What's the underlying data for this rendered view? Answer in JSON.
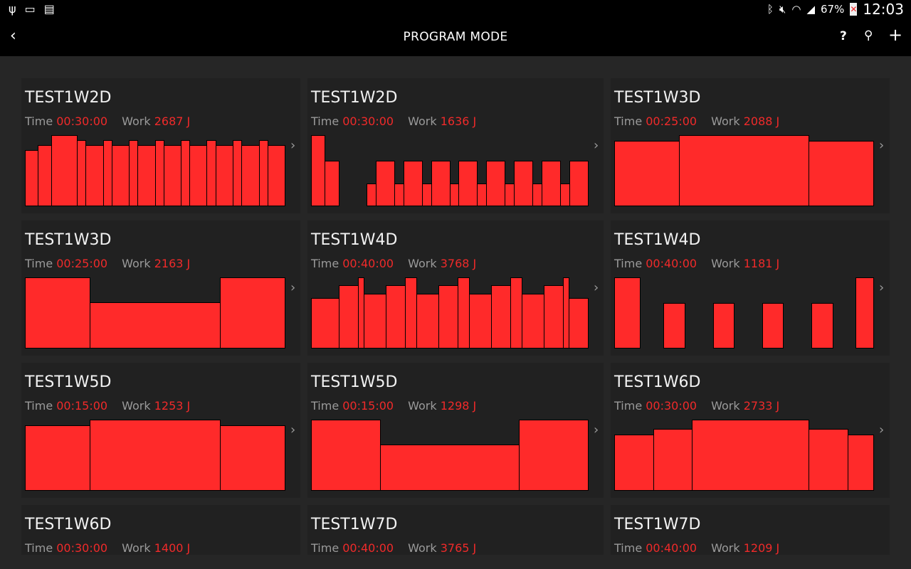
{
  "status_bar": {
    "left_icons": [
      "usb-icon",
      "cast-icon",
      "sim-card-icon"
    ],
    "right_icons": [
      "bluetooth-icon",
      "mute-icon",
      "wifi-icon",
      "signal-icon"
    ],
    "battery": "67%",
    "time": "12:03"
  },
  "app_bar": {
    "title": "PROGRAM MODE",
    "back_icon": "chevron-left-icon",
    "help_label": "?",
    "actions": [
      "help-icon",
      "search-icon",
      "add-icon"
    ]
  },
  "labels": {
    "time": "Time",
    "work": "Work"
  },
  "colors": {
    "accent": "#ff2a2a",
    "background": "#262626",
    "card": "#212121",
    "app_bar": "#000000"
  },
  "programs": [
    {
      "name": "TEST1W2D",
      "time": "00:30:00",
      "work": "2687 J",
      "segments": [
        [
          90,
          79
        ],
        [
          90,
          86
        ],
        [
          180,
          100
        ],
        [
          60,
          93
        ],
        [
          120,
          86
        ],
        [
          60,
          93
        ],
        [
          120,
          86
        ],
        [
          60,
          93
        ],
        [
          120,
          86
        ],
        [
          60,
          93
        ],
        [
          120,
          86
        ],
        [
          60,
          93
        ],
        [
          120,
          86
        ],
        [
          60,
          93
        ],
        [
          120,
          86
        ],
        [
          60,
          93
        ],
        [
          120,
          86
        ],
        [
          60,
          93
        ],
        [
          120,
          86
        ]
      ]
    },
    {
      "name": "TEST1W2D",
      "time": "00:30:00",
      "work": "1636 J",
      "segments": [
        [
          90,
          100
        ],
        [
          90,
          64
        ],
        [
          180,
          0
        ],
        [
          60,
          32
        ],
        [
          120,
          64
        ],
        [
          60,
          32
        ],
        [
          120,
          64
        ],
        [
          60,
          32
        ],
        [
          120,
          64
        ],
        [
          60,
          32
        ],
        [
          120,
          64
        ],
        [
          60,
          32
        ],
        [
          120,
          64
        ],
        [
          60,
          32
        ],
        [
          120,
          64
        ],
        [
          60,
          32
        ],
        [
          120,
          64
        ],
        [
          60,
          32
        ],
        [
          120,
          64
        ]
      ]
    },
    {
      "name": "TEST1W3D",
      "time": "00:25:00",
      "work": "2088 J",
      "segments": [
        [
          375,
          92
        ],
        [
          750,
          100
        ],
        [
          375,
          92
        ]
      ]
    },
    {
      "name": "TEST1W3D",
      "time": "00:25:00",
      "work": "2163 J",
      "segments": [
        [
          375,
          100
        ],
        [
          750,
          65
        ],
        [
          375,
          100
        ]
      ]
    },
    {
      "name": "TEST1W4D",
      "time": "00:40:00",
      "work": "3768 J",
      "segments": [
        [
          240,
          71
        ],
        [
          165,
          89
        ],
        [
          50,
          100
        ],
        [
          190,
          77
        ],
        [
          165,
          89
        ],
        [
          100,
          100
        ],
        [
          190,
          77
        ],
        [
          165,
          89
        ],
        [
          100,
          100
        ],
        [
          190,
          77
        ],
        [
          165,
          89
        ],
        [
          100,
          100
        ],
        [
          190,
          77
        ],
        [
          165,
          89
        ],
        [
          50,
          100
        ],
        [
          165,
          71
        ]
      ]
    },
    {
      "name": "TEST1W4D",
      "time": "00:40:00",
      "work": "1181 J",
      "segments": [
        [
          240,
          100
        ],
        [
          220,
          0
        ],
        [
          195,
          64
        ],
        [
          265,
          0
        ],
        [
          195,
          64
        ],
        [
          265,
          0
        ],
        [
          195,
          64
        ],
        [
          265,
          0
        ],
        [
          195,
          64
        ],
        [
          215,
          0
        ],
        [
          165,
          100
        ]
      ]
    },
    {
      "name": "TEST1W5D",
      "time": "00:15:00",
      "work": "1253 J",
      "segments": [
        [
          225,
          92
        ],
        [
          450,
          100
        ],
        [
          225,
          92
        ]
      ]
    },
    {
      "name": "TEST1W5D",
      "time": "00:15:00",
      "work": "1298 J",
      "segments": [
        [
          225,
          100
        ],
        [
          450,
          65
        ],
        [
          225,
          100
        ]
      ]
    },
    {
      "name": "TEST1W6D",
      "time": "00:30:00",
      "work": "2733 J",
      "segments": [
        [
          270,
          79
        ],
        [
          270,
          87
        ],
        [
          810,
          100
        ],
        [
          270,
          87
        ],
        [
          180,
          79
        ]
      ]
    },
    {
      "name": "TEST1W6D",
      "time": "00:30:00",
      "work": "1400 J",
      "segments": []
    },
    {
      "name": "TEST1W7D",
      "time": "00:40:00",
      "work": "3765 J",
      "segments": []
    },
    {
      "name": "TEST1W7D",
      "time": "00:40:00",
      "work": "1209 J",
      "segments": []
    }
  ]
}
